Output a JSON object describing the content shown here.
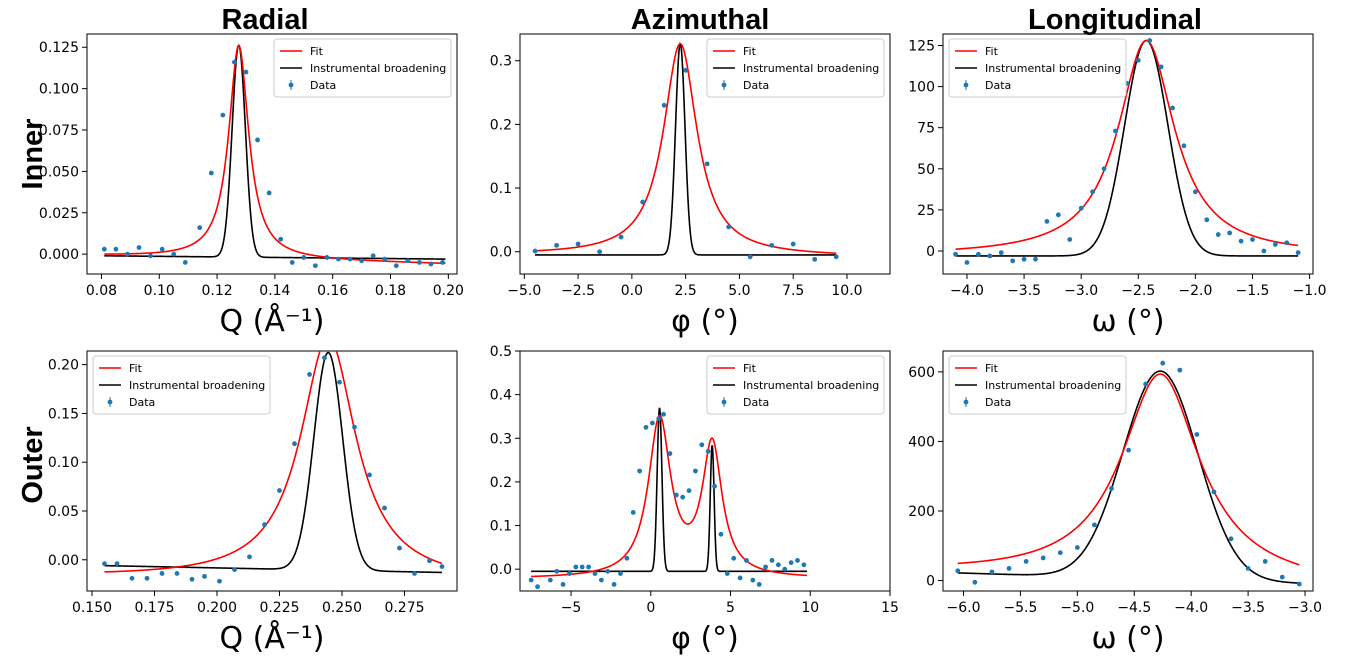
{
  "row_titles": [
    "Inner",
    "Outer"
  ],
  "column_titles": [
    "Radial",
    "Azimuthal",
    "Longitudinal"
  ],
  "legend": {
    "fit": "Fit",
    "instrumental": "Instrumental broadening",
    "data": "Data"
  },
  "colors": {
    "fit": "#ff0000",
    "instrumental": "#000000",
    "data": "#1f77b4"
  },
  "chart_data": [
    {
      "id": "inner-radial",
      "type": "line",
      "row": "Inner",
      "column": "Radial",
      "xlabel": "Q (Å⁻¹)",
      "ylabel": "",
      "xlim": [
        0.075,
        0.203
      ],
      "ylim": [
        -0.012,
        0.133
      ],
      "xticks": [
        0.08,
        0.1,
        0.12,
        0.14,
        0.16,
        0.18,
        0.2
      ],
      "xticklabels": [
        "0.08",
        "0.10",
        "0.12",
        "0.14",
        "0.16",
        "0.18",
        "0.20"
      ],
      "yticks": [
        0.0,
        0.025,
        0.05,
        0.075,
        0.1,
        0.125
      ],
      "yticklabels": [
        "0.000",
        "0.025",
        "0.050",
        "0.075",
        "0.100",
        "0.125"
      ],
      "legend_position": "top-right",
      "grid": false,
      "series": [
        {
          "name": "Fit",
          "kind": "lorentzian",
          "center": 0.1275,
          "hwhm": 0.0042,
          "amplitude": 0.128,
          "baseline": [
            -0.001,
            -0.006
          ],
          "range": [
            0.081,
            0.199
          ]
        },
        {
          "name": "Instrumental broadening",
          "kind": "gaussian",
          "center": 0.1275,
          "sigma": 0.0023,
          "amplitude": 0.127,
          "baseline": [
            -0.001,
            -0.003
          ],
          "range": [
            0.081,
            0.199
          ]
        },
        {
          "name": "Data",
          "kind": "points",
          "x": [
            0.081,
            0.085,
            0.089,
            0.093,
            0.097,
            0.101,
            0.105,
            0.109,
            0.114,
            0.118,
            0.122,
            0.126,
            0.13,
            0.134,
            0.138,
            0.142,
            0.146,
            0.15,
            0.154,
            0.158,
            0.162,
            0.166,
            0.17,
            0.174,
            0.178,
            0.182,
            0.186,
            0.19,
            0.194,
            0.198
          ],
          "y": [
            0.003,
            0.003,
            -0.0,
            0.004,
            -0.001,
            0.003,
            -0.0,
            -0.005,
            0.016,
            0.049,
            0.084,
            0.116,
            0.11,
            0.069,
            0.037,
            0.009,
            -0.005,
            -0.002,
            -0.007,
            -0.002,
            -0.003,
            -0.003,
            -0.004,
            -0.001,
            -0.003,
            -0.007,
            -0.004,
            -0.005,
            -0.006,
            -0.005
          ]
        }
      ]
    },
    {
      "id": "inner-azimuthal",
      "type": "line",
      "row": "Inner",
      "column": "Azimuthal",
      "xlabel": "φ (°)",
      "ylabel": "",
      "xlim": [
        -5.2,
        12.0
      ],
      "ylim": [
        -0.035,
        0.342
      ],
      "xticks": [
        -5.0,
        -2.5,
        0.0,
        2.5,
        5.0,
        7.5,
        10.0
      ],
      "xticklabels": [
        "−5.0",
        "−2.5",
        "0.0",
        "2.5",
        "5.0",
        "7.5",
        "10.0"
      ],
      "yticks": [
        0.0,
        0.1,
        0.2,
        0.3
      ],
      "yticklabels": [
        "0.0",
        "0.1",
        "0.2",
        "0.3"
      ],
      "legend_position": "top-right",
      "grid": false,
      "series": [
        {
          "name": "Fit",
          "kind": "lorentzian",
          "center": 2.25,
          "hwhm": 0.95,
          "amplitude": 0.328,
          "baseline": [
            -0.005,
            -0.008
          ],
          "range": [
            -4.5,
            9.5
          ]
        },
        {
          "name": "Instrumental broadening",
          "kind": "gaussian",
          "center": 2.25,
          "sigma": 0.22,
          "amplitude": 0.327,
          "baseline": [
            -0.005,
            -0.005
          ],
          "range": [
            -4.5,
            9.5
          ]
        },
        {
          "name": "Data",
          "kind": "points",
          "x": [
            -4.5,
            -3.5,
            -2.5,
            -1.5,
            -0.5,
            0.5,
            1.5,
            2.5,
            3.5,
            4.5,
            5.5,
            6.5,
            7.5,
            8.5,
            9.5
          ],
          "y": [
            0.001,
            0.01,
            0.012,
            0.0,
            0.023,
            0.078,
            0.23,
            0.285,
            0.138,
            0.039,
            -0.008,
            0.01,
            0.012,
            -0.012,
            -0.008
          ]
        }
      ]
    },
    {
      "id": "inner-longitudinal",
      "type": "line",
      "row": "Inner",
      "column": "Longitudinal",
      "xlabel": "ω (°)",
      "ylabel": "",
      "xlim": [
        -4.21,
        -0.97
      ],
      "ylim": [
        -14.0,
        132.0
      ],
      "xticks": [
        -4.0,
        -3.5,
        -3.0,
        -2.5,
        -2.0,
        -1.5,
        -1.0
      ],
      "xticklabels": [
        "−4.0",
        "−3.5",
        "−3.0",
        "−2.5",
        "−2.0",
        "−1.5",
        "−1.0"
      ],
      "yticks": [
        0,
        25,
        50,
        75,
        100,
        125
      ],
      "yticklabels": [
        "0",
        "25",
        "50",
        "75",
        "100",
        "125"
      ],
      "legend_position": "top-left",
      "grid": false,
      "series": [
        {
          "name": "Fit",
          "kind": "lorentzian",
          "center": -2.43,
          "hwhm": 0.3,
          "amplitude": 128,
          "baseline": [
            -3,
            -3
          ],
          "range": [
            -4.1,
            -1.1
          ]
        },
        {
          "name": "Instrumental broadening",
          "kind": "gaussian",
          "center": -2.43,
          "sigma": 0.19,
          "amplitude": 128,
          "baseline": [
            -3,
            -3
          ],
          "range": [
            -4.1,
            -1.1
          ]
        },
        {
          "name": "Data",
          "kind": "points",
          "x": [
            -4.1,
            -4.0,
            -3.9,
            -3.8,
            -3.7,
            -3.6,
            -3.5,
            -3.4,
            -3.3,
            -3.2,
            -3.1,
            -3.0,
            -2.9,
            -2.8,
            -2.7,
            -2.6,
            -2.5,
            -2.4,
            -2.3,
            -2.2,
            -2.1,
            -2.0,
            -1.9,
            -1.8,
            -1.7,
            -1.6,
            -1.5,
            -1.4,
            -1.3,
            -1.2,
            -1.1
          ],
          "y": [
            -2,
            -7,
            -2,
            -3,
            -1,
            -6,
            -5,
            -5,
            18,
            22,
            7,
            26,
            36,
            50,
            73,
            102,
            116,
            128,
            112,
            87,
            64,
            36,
            19,
            10,
            11,
            6,
            7,
            0,
            4,
            5,
            -1
          ]
        }
      ]
    },
    {
      "id": "outer-radial",
      "type": "line",
      "row": "Outer",
      "column": "Radial",
      "xlabel": "Q (Å⁻¹)",
      "ylabel": "",
      "xlim": [
        0.148,
        0.296
      ],
      "ylim": [
        -0.032,
        0.214
      ],
      "xticks": [
        0.15,
        0.175,
        0.2,
        0.225,
        0.25,
        0.275
      ],
      "xticklabels": [
        "0.150",
        "0.175",
        "0.200",
        "0.225",
        "0.250",
        "0.275"
      ],
      "yticks": [
        0.0,
        0.05,
        0.1,
        0.15,
        0.2
      ],
      "yticklabels": [
        "0.00",
        "0.05",
        "0.10",
        "0.15",
        "0.20"
      ],
      "legend_position": "top-left",
      "grid": false,
      "series": [
        {
          "name": "Fit",
          "kind": "lorentzian",
          "center": 0.2445,
          "hwhm": 0.0135,
          "amplitude": 0.232,
          "baseline": [
            -0.018,
            -0.024
          ],
          "range": [
            0.155,
            0.29
          ]
        },
        {
          "name": "Instrumental broadening",
          "kind": "gaussian",
          "center": 0.2445,
          "sigma": 0.0058,
          "amplitude": 0.217,
          "baseline": [
            -0.006,
            -0.013
          ],
          "range": [
            0.155,
            0.29
          ]
        },
        {
          "name": "Data",
          "kind": "points",
          "x": [
            0.155,
            0.16,
            0.166,
            0.172,
            0.178,
            0.184,
            0.19,
            0.195,
            0.201,
            0.207,
            0.213,
            0.219,
            0.225,
            0.231,
            0.237,
            0.243,
            0.249,
            0.255,
            0.261,
            0.267,
            0.273,
            0.279,
            0.285,
            0.29
          ],
          "y": [
            -0.004,
            -0.004,
            -0.019,
            -0.019,
            -0.014,
            -0.014,
            -0.02,
            -0.017,
            -0.022,
            -0.01,
            0.003,
            0.036,
            0.071,
            0.119,
            0.19,
            0.207,
            0.182,
            0.136,
            0.087,
            0.053,
            0.012,
            -0.014,
            -0.001,
            -0.007
          ]
        }
      ]
    },
    {
      "id": "outer-azimuthal",
      "type": "line",
      "row": "Outer",
      "column": "Azimuthal",
      "xlabel": "φ (°)",
      "ylabel": "",
      "xlim": [
        -8.2,
        15.0
      ],
      "ylim": [
        -0.05,
        0.5
      ],
      "xticks": [
        -5,
        0,
        5,
        10,
        15
      ],
      "xticklabels": [
        "−5",
        "0",
        "5",
        "10",
        "15"
      ],
      "yticks": [
        0.0,
        0.1,
        0.2,
        0.3,
        0.4,
        0.5
      ],
      "yticklabels": [
        "0.0",
        "0.1",
        "0.2",
        "0.3",
        "0.4",
        "0.5"
      ],
      "legend_position": "top-right",
      "grid": false,
      "series": [
        {
          "name": "Fit",
          "kind": "double-lorentzian",
          "peaks": [
            {
              "center": 0.55,
              "hwhm": 0.85,
              "amplitude": 0.36
            },
            {
              "center": 3.85,
              "hwhm": 0.75,
              "amplitude": 0.3
            }
          ],
          "baseline": [
            -0.022,
            -0.022
          ],
          "range": [
            -7.5,
            9.8
          ]
        },
        {
          "name": "Instrumental broadening",
          "kind": "double-gaussian",
          "peaks": [
            {
              "center": 0.55,
              "sigma": 0.15,
              "amplitude": 0.375
            },
            {
              "center": 3.85,
              "sigma": 0.12,
              "amplitude": 0.29
            }
          ],
          "baseline": [
            -0.005,
            -0.005
          ],
          "range": [
            -7.5,
            9.8
          ]
        },
        {
          "name": "Data",
          "kind": "points",
          "x": [
            -7.5,
            -7.1,
            -6.3,
            -5.9,
            -5.5,
            -5.1,
            -4.7,
            -4.3,
            -3.9,
            -3.5,
            -3.1,
            -2.7,
            -2.3,
            -1.9,
            -1.5,
            -1.1,
            -0.7,
            -0.3,
            0.1,
            0.5,
            0.8,
            1.2,
            1.6,
            2.0,
            2.4,
            2.8,
            3.2,
            3.6,
            4.0,
            4.4,
            4.8,
            5.2,
            5.6,
            6.0,
            6.4,
            6.8,
            7.2,
            7.6,
            8.0,
            8.4,
            8.8,
            9.2,
            9.6
          ],
          "y": [
            -0.025,
            -0.04,
            -0.025,
            -0.005,
            -0.035,
            -0.01,
            0.005,
            0.005,
            0.005,
            -0.01,
            -0.025,
            -0.005,
            -0.035,
            -0.01,
            0.025,
            0.13,
            0.225,
            0.325,
            0.335,
            0.345,
            0.355,
            0.265,
            0.17,
            0.165,
            0.18,
            0.225,
            0.285,
            0.27,
            0.19,
            0.08,
            -0.01,
            0.025,
            -0.02,
            0.02,
            -0.025,
            -0.035,
            0.005,
            0.02,
            0.01,
            0.0,
            0.015,
            0.02,
            0.01
          ]
        }
      ]
    },
    {
      "id": "outer-longitudinal",
      "type": "line",
      "row": "Outer",
      "column": "Longitudinal",
      "xlabel": "ω (°)",
      "ylabel": "",
      "xlim": [
        -6.18,
        -2.93
      ],
      "ylim": [
        -30.0,
        660.0
      ],
      "xticks": [
        -6.0,
        -5.5,
        -5.0,
        -4.5,
        -4.0,
        -3.5,
        -3.0
      ],
      "xticklabels": [
        "−6.0",
        "−5.5",
        "−5.0",
        "−4.5",
        "−4.0",
        "−3.5",
        "−3.0"
      ],
      "yticks": [
        0,
        200,
        400,
        600
      ],
      "yticklabels": [
        "0",
        "200",
        "400",
        "600"
      ],
      "legend_position": "top-left",
      "grid": false,
      "series": [
        {
          "name": "Fit",
          "kind": "lorentzian",
          "center": -4.27,
          "hwhm": 0.42,
          "amplitude": 615,
          "baseline": [
            18,
            -18
          ],
          "range": [
            -6.05,
            -3.05
          ]
        },
        {
          "name": "Instrumental broadening",
          "kind": "gaussian",
          "center": -4.27,
          "sigma": 0.33,
          "amplitude": 620,
          "baseline": [
            22,
            -8
          ],
          "range": [
            -6.05,
            -3.05
          ]
        },
        {
          "name": "Data",
          "kind": "points",
          "x": [
            -6.05,
            -5.9,
            -5.75,
            -5.6,
            -5.45,
            -5.3,
            -5.15,
            -5.0,
            -4.85,
            -4.7,
            -4.55,
            -4.4,
            -4.25,
            -4.1,
            -3.95,
            -3.8,
            -3.65,
            -3.5,
            -3.35,
            -3.2,
            -3.05
          ],
          "y": [
            28,
            -5,
            25,
            35,
            55,
            65,
            80,
            95,
            160,
            265,
            375,
            565,
            625,
            605,
            420,
            255,
            120,
            35,
            55,
            10,
            -10
          ]
        }
      ]
    }
  ]
}
